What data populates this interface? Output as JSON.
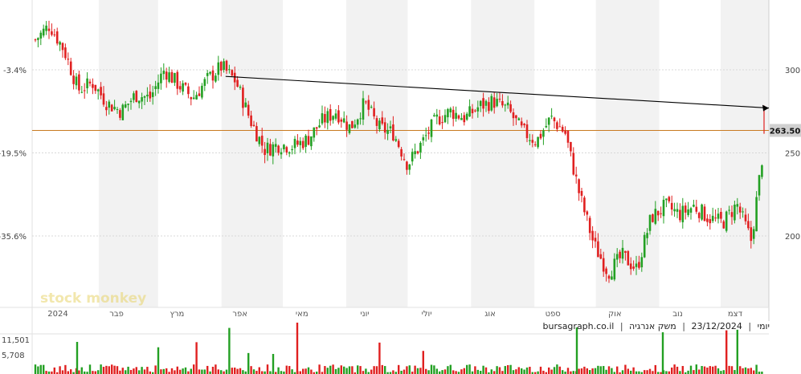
{
  "header": {
    "interval": "יומי",
    "date": "23/12/2024",
    "company": "משק אנרגיה",
    "source": "bursagraph.co.il",
    "separator": "|"
  },
  "watermark": "stock monkey",
  "colors": {
    "up": "#23a023",
    "down": "#e02020",
    "level": "#c87a20",
    "trend": "#000000",
    "grid": "#d8d8d8",
    "band": "#f2f2f2",
    "price_box": "#d0d0d0"
  },
  "chart_data": {
    "type": "candlestick",
    "title": "",
    "x_axis": {
      "type": "date",
      "start": "2024-01-01",
      "end": "2024-12-23",
      "month_labels": [
        "2024",
        "פבר",
        "מרץ",
        "אפר",
        "מאי",
        "יוני",
        "יולי",
        "אוג",
        "ספט",
        "אוק",
        "נוב",
        "דצמ"
      ]
    },
    "y_axis_right": {
      "ticks": [
        200,
        250,
        300
      ],
      "range": [
        157,
        342
      ]
    },
    "y_axis_left": {
      "ticks": [
        "-3.4%",
        "-19.5%",
        "-35.6%"
      ]
    },
    "last_price": "263.50",
    "last_price_value": 263.5,
    "horizontal_level": 263.5,
    "trendline": {
      "from": {
        "date": "2024-04-03",
        "price": 296
      },
      "to": {
        "date": "2024-12-23",
        "price": 277
      }
    },
    "close_series": {
      "dates": [
        "2024-01-01",
        "2024-01-08",
        "2024-01-15",
        "2024-01-22",
        "2024-01-29",
        "2024-02-05",
        "2024-02-12",
        "2024-02-19",
        "2024-02-26",
        "2024-03-04",
        "2024-03-11",
        "2024-03-18",
        "2024-03-25",
        "2024-04-01",
        "2024-04-08",
        "2024-04-15",
        "2024-04-22",
        "2024-04-29",
        "2024-05-06",
        "2024-05-13",
        "2024-05-20",
        "2024-05-27",
        "2024-06-03",
        "2024-06-10",
        "2024-06-17",
        "2024-06-24",
        "2024-07-01",
        "2024-07-08",
        "2024-07-15",
        "2024-07-22",
        "2024-07-29",
        "2024-08-05",
        "2024-08-12",
        "2024-08-19",
        "2024-08-26",
        "2024-09-02",
        "2024-09-09",
        "2024-09-16",
        "2024-09-23",
        "2024-09-30",
        "2024-10-07",
        "2024-10-14",
        "2024-10-21",
        "2024-10-28",
        "2024-11-04",
        "2024-11-11",
        "2024-11-18",
        "2024-11-25",
        "2024-12-02",
        "2024-12-09",
        "2024-12-16",
        "2024-12-23"
      ],
      "values": [
        318,
        327,
        312,
        288,
        292,
        280,
        275,
        285,
        283,
        300,
        291,
        283,
        294,
        302,
        293,
        270,
        252,
        255,
        254,
        258,
        269,
        275,
        265,
        280,
        265,
        262,
        243,
        256,
        270,
        275,
        271,
        278,
        281,
        276,
        263,
        257,
        271,
        262,
        225,
        195,
        178,
        188,
        180,
        211,
        218,
        213,
        218,
        211,
        208,
        219,
        197,
        263.5
      ]
    },
    "volume": {
      "ticks": [
        "11,501",
        "5,708"
      ]
    }
  }
}
